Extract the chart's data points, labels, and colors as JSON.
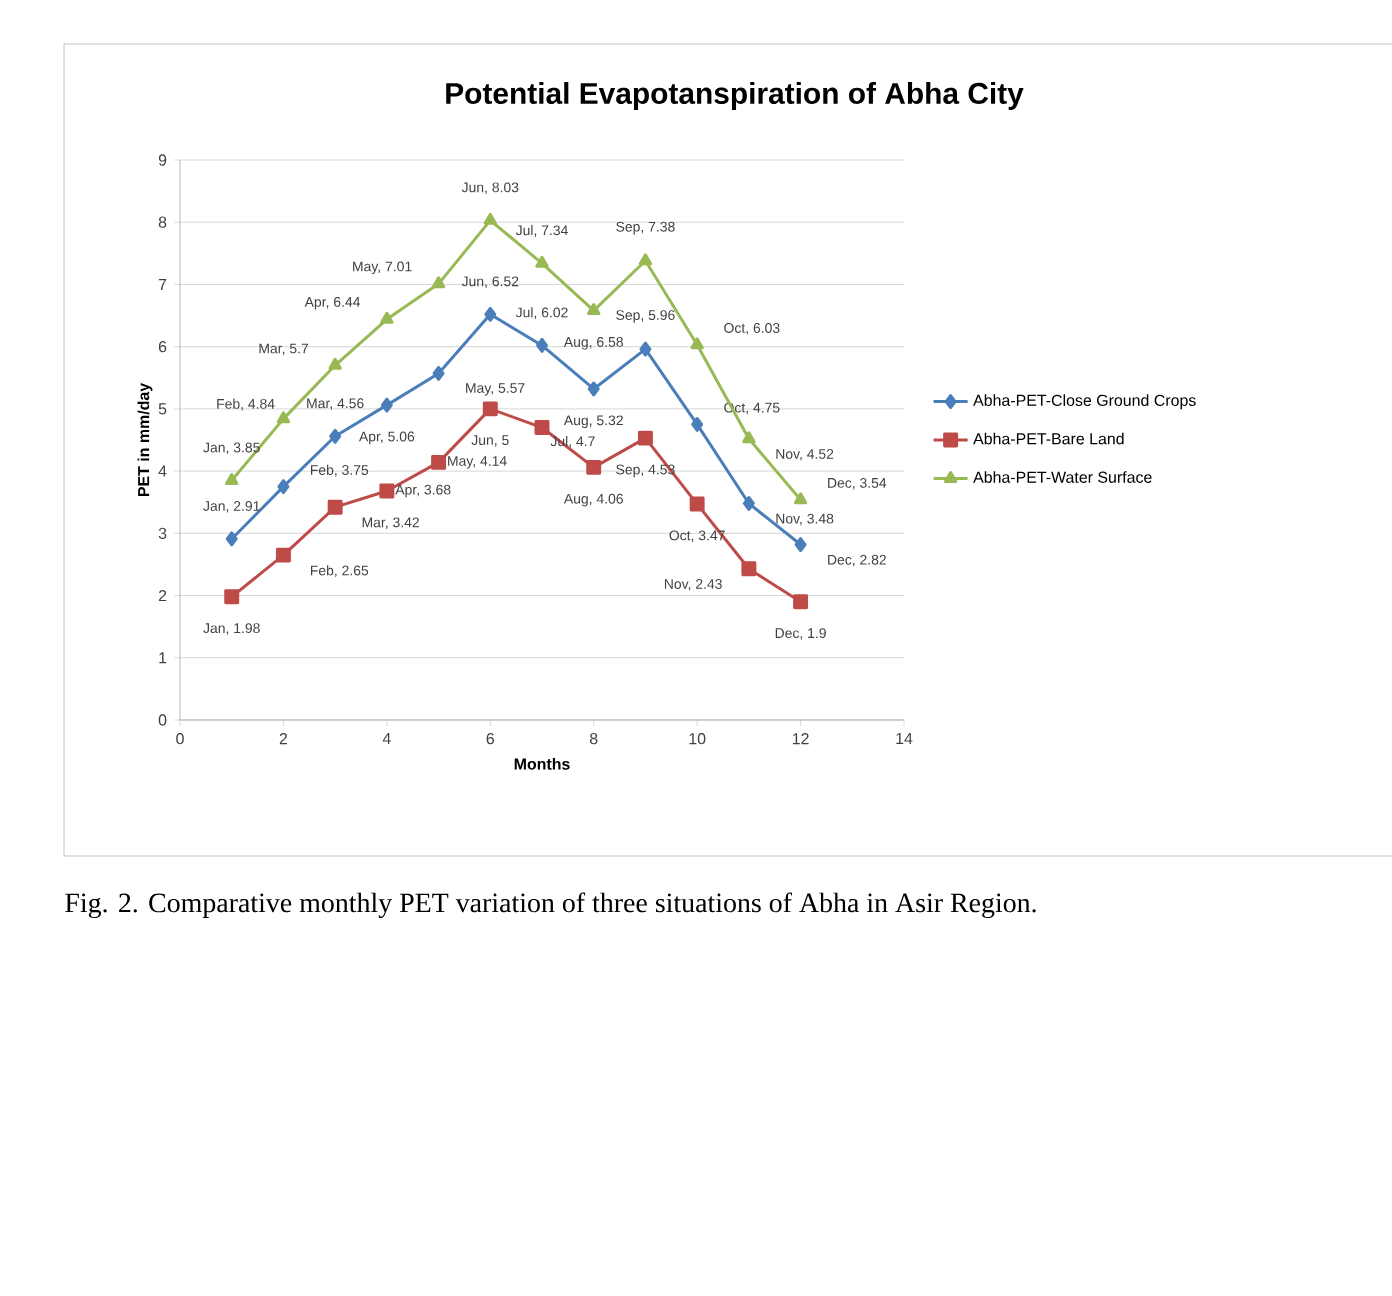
{
  "chart_data": {
    "type": "line",
    "title": "Potential Evapotanspiration of Abha City",
    "xlabel": "Months",
    "ylabel": "PET in mm/day",
    "x": [
      1,
      2,
      3,
      4,
      5,
      6,
      7,
      8,
      9,
      10,
      11,
      12
    ],
    "series": [
      {
        "name": "Abha-PET-Close Ground Crops",
        "color": "#4a7ebb",
        "marker": "diamond",
        "values": [
          2.91,
          3.75,
          4.56,
          5.06,
          5.57,
          6.52,
          6.02,
          5.32,
          5.96,
          4.75,
          3.48,
          2.82
        ],
        "value_labels": [
          "Jan, 2.91",
          "Feb, 3.75",
          "Mar, 4.56",
          "Apr, 5.06",
          "May, 5.57",
          "Jun, 6.52",
          "Jul, 6.02",
          "Aug, 5.32",
          "Sep, 5.96",
          "Oct, 4.75",
          "Nov, 3.48",
          "Dec, 2.82"
        ]
      },
      {
        "name": "Abha-PET-Bare Land",
        "color": "#be4b48",
        "marker": "square",
        "values": [
          1.98,
          2.65,
          3.42,
          3.68,
          4.14,
          5,
          4.7,
          4.06,
          4.53,
          3.47,
          2.43,
          1.9
        ],
        "value_labels": [
          "Jan, 1.98",
          "Feb, 2.65",
          "Mar, 3.42",
          "Apr, 3.68",
          "May, 4.14",
          "Jun, 5",
          "Jul, 4.7",
          "Aug, 4.06",
          "Sep, 4.53",
          "Oct, 3.47",
          "Nov, 2.43",
          "Dec, 1.9"
        ]
      },
      {
        "name": "Abha-PET-Water Surface",
        "color": "#98b954",
        "marker": "triangle",
        "values": [
          3.85,
          4.84,
          5.7,
          6.44,
          7.01,
          8.03,
          7.34,
          6.58,
          7.38,
          6.03,
          4.52,
          3.54
        ],
        "value_labels": [
          "Jan, 3.85",
          "Feb, 4.84",
          "Mar, 5.7",
          "Apr, 6.44",
          "May, 7.01",
          "Jun, 8.03",
          "Jul, 7.34",
          "Aug, 6.58",
          "Sep, 7.38",
          "Oct, 6.03",
          "Nov, 4.52",
          "Dec, 3.54"
        ]
      }
    ],
    "xlim": [
      0,
      14
    ],
    "xticks": [
      0,
      2,
      4,
      6,
      8,
      10,
      12,
      14
    ],
    "ylim": [
      0,
      9
    ],
    "yticks": [
      0,
      1,
      2,
      3,
      4,
      5,
      6,
      7,
      8,
      9
    ],
    "grid": "y",
    "legend": "right",
    "line_style": "solid",
    "annotations": [
      "Fig. 2.  Comparative monthly PET variation of three situations of Abha in Asir Region."
    ]
  }
}
